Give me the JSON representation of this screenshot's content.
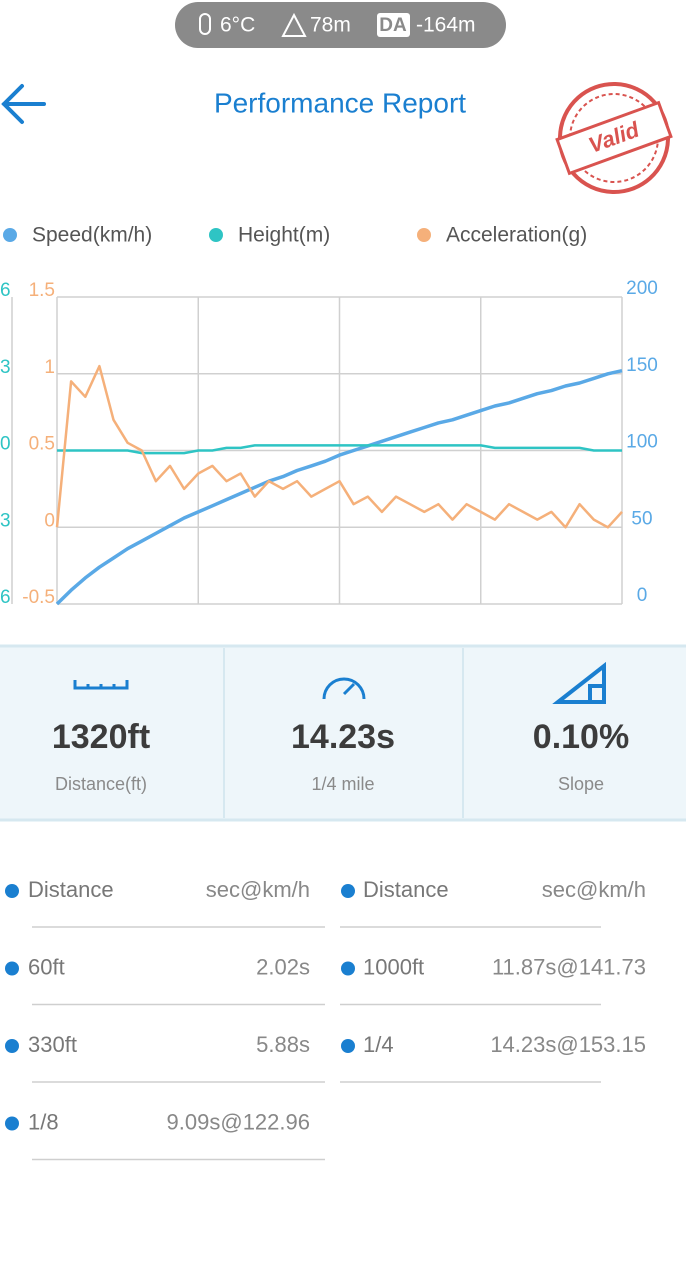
{
  "status": {
    "temperature": "6°C",
    "altitude": "78m",
    "da_badge": "DA",
    "density_altitude": "-164m"
  },
  "header": {
    "title": "Performance Report",
    "stamp": "Valid"
  },
  "chart_data": {
    "type": "line",
    "series": [
      {
        "name": "Speed(km/h)",
        "color": "#5aa9e6",
        "axis": "y2",
        "values": [
          0,
          9,
          17,
          24,
          30,
          36,
          41,
          46,
          51,
          56,
          60,
          64,
          68,
          72,
          76,
          80,
          83,
          87,
          90,
          93,
          97,
          100,
          103,
          106,
          109,
          112,
          115,
          118,
          120,
          123,
          126,
          129,
          131,
          134,
          137,
          139,
          142,
          144,
          147,
          150,
          152
        ]
      },
      {
        "name": "Height(m)",
        "color": "#2ec4c4",
        "axis": "y3",
        "values": [
          0,
          0,
          0,
          0,
          0,
          0,
          -0.01,
          -0.01,
          -0.01,
          -0.01,
          0,
          0,
          0.01,
          0.01,
          0.02,
          0.02,
          0.02,
          0.02,
          0.02,
          0.02,
          0.02,
          0.02,
          0.02,
          0.02,
          0.02,
          0.02,
          0.02,
          0.02,
          0.02,
          0.02,
          0.02,
          0.01,
          0.01,
          0.01,
          0.01,
          0.01,
          0.01,
          0.01,
          0,
          0,
          0
        ]
      },
      {
        "name": "Acceleration(g)",
        "color": "#f5b07a",
        "axis": "y",
        "values": [
          0,
          0.95,
          0.85,
          1.05,
          0.7,
          0.55,
          0.5,
          0.3,
          0.4,
          0.25,
          0.35,
          0.4,
          0.3,
          0.35,
          0.2,
          0.3,
          0.25,
          0.3,
          0.2,
          0.25,
          0.3,
          0.15,
          0.2,
          0.1,
          0.2,
          0.15,
          0.1,
          0.15,
          0.05,
          0.15,
          0.1,
          0.05,
          0.15,
          0.1,
          0.05,
          0.1,
          0,
          0.15,
          0.05,
          0,
          0.1
        ]
      }
    ],
    "ylim": [
      -0.5,
      1.5
    ],
    "yticks": [
      -0.5,
      0,
      0.5,
      1,
      1.5
    ],
    "y2lim": [
      0,
      200
    ],
    "y2ticks": [
      0,
      50,
      100,
      150,
      200
    ],
    "y3lim": [
      -0.6,
      0.6
    ],
    "y3ticks": [
      {
        "value": -0.6,
        "label": "6"
      },
      {
        "value": -0.3,
        "label": "3"
      },
      {
        "value": 0,
        "label": "0"
      },
      {
        "value": 0.3,
        "label": "3"
      },
      {
        "value": 0.6,
        "label": "6"
      }
    ],
    "grid": true
  },
  "stats": [
    {
      "value": "1320ft",
      "label": "Distance(ft)"
    },
    {
      "value": "14.23s",
      "label": "1/4 mile"
    },
    {
      "value": "0.10%",
      "label": "Slope"
    }
  ],
  "splits": {
    "left": [
      [
        "Distance",
        "sec@km/h"
      ],
      [
        "60ft",
        "2.02s"
      ],
      [
        "330ft",
        "5.88s"
      ],
      [
        "1/8",
        "9.09s@122.96"
      ]
    ],
    "right": [
      [
        "Distance",
        "sec@km/h"
      ],
      [
        "1000ft",
        "11.87s@141.73"
      ],
      [
        "1/4",
        "14.23s@153.15"
      ]
    ]
  }
}
